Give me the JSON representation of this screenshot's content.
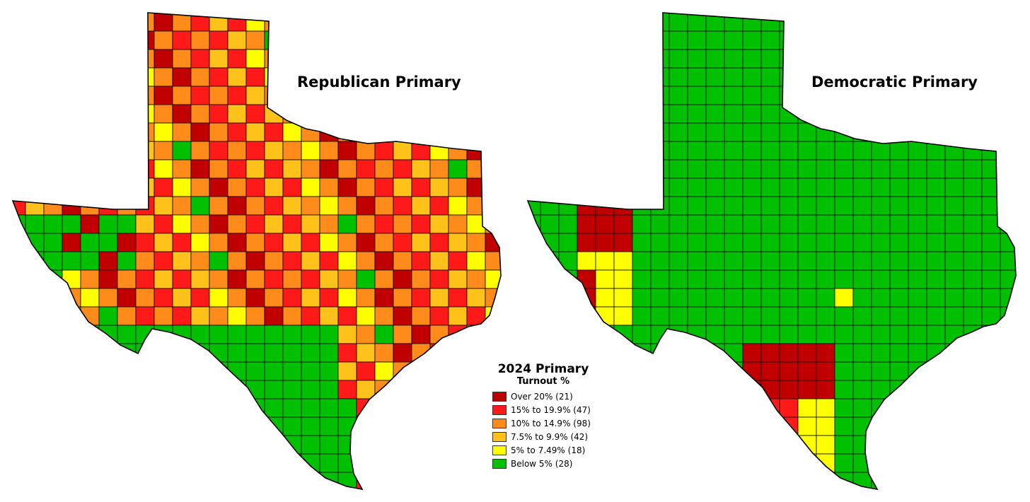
{
  "maps": {
    "republican": {
      "title": "Republican Primary",
      "key": "rep"
    },
    "democratic": {
      "title": "Democratic Primary",
      "key": "dem"
    }
  },
  "legend": {
    "title": "2024 Primary",
    "subtitle": "Turnout %",
    "items": [
      {
        "label": "Over 20% (21)",
        "color": "#c00000"
      },
      {
        "label": "15% to 19.9% (47)",
        "color": "#ff1a1a"
      },
      {
        "label": "10% to 14.9% (98)",
        "color": "#ff8c1a"
      },
      {
        "label": "7.5% to 9.9% (42)",
        "color": "#ffc21a"
      },
      {
        "label": "5% to 7.49% (18)",
        "color": "#ffff00"
      },
      {
        "label": "Below 5% (28)",
        "color": "#00c000"
      }
    ]
  }
}
